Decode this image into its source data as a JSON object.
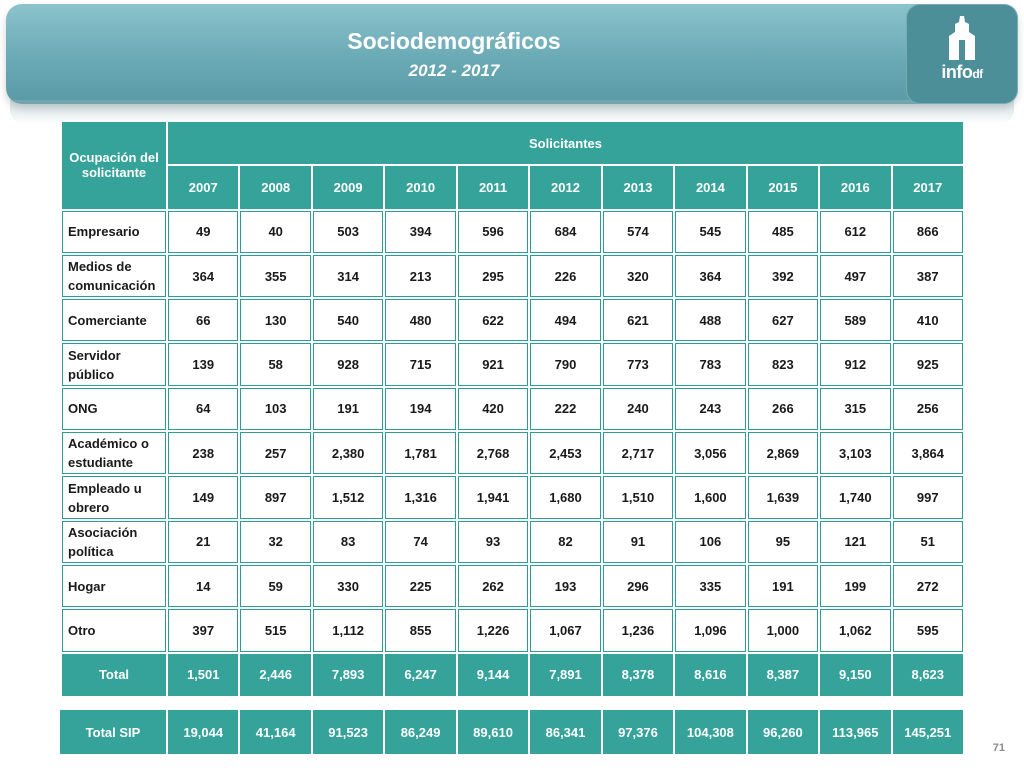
{
  "header": {
    "title": "Sociodemográficos",
    "subtitle": "2012 - 2017",
    "logo_text": "info",
    "logo_suffix": "df"
  },
  "table": {
    "stub_header": "Ocupación del solicitante",
    "group_header": "Solicitantes",
    "years": [
      "2007",
      "2008",
      "2009",
      "2010",
      "2011",
      "2012",
      "2013",
      "2014",
      "2015",
      "2016",
      "2017"
    ],
    "rows": [
      {
        "label": "Empresario",
        "values": [
          "49",
          "40",
          "503",
          "394",
          "596",
          "684",
          "574",
          "545",
          "485",
          "612",
          "866"
        ]
      },
      {
        "label": "Medios de comunicación",
        "values": [
          "364",
          "355",
          "314",
          "213",
          "295",
          "226",
          "320",
          "364",
          "392",
          "497",
          "387"
        ]
      },
      {
        "label": "Comerciante",
        "values": [
          "66",
          "130",
          "540",
          "480",
          "622",
          "494",
          "621",
          "488",
          "627",
          "589",
          "410"
        ]
      },
      {
        "label": "Servidor público",
        "values": [
          "139",
          "58",
          "928",
          "715",
          "921",
          "790",
          "773",
          "783",
          "823",
          "912",
          "925"
        ]
      },
      {
        "label": "ONG",
        "values": [
          "64",
          "103",
          "191",
          "194",
          "420",
          "222",
          "240",
          "243",
          "266",
          "315",
          "256"
        ]
      },
      {
        "label": "Académico o estudiante",
        "values": [
          "238",
          "257",
          "2,380",
          "1,781",
          "2,768",
          "2,453",
          "2,717",
          "3,056",
          "2,869",
          "3,103",
          "3,864"
        ]
      },
      {
        "label": "Empleado u obrero",
        "values": [
          "149",
          "897",
          "1,512",
          "1,316",
          "1,941",
          "1,680",
          "1,510",
          "1,600",
          "1,639",
          "1,740",
          "997"
        ]
      },
      {
        "label": "Asociación política",
        "values": [
          "21",
          "32",
          "83",
          "74",
          "93",
          "82",
          "91",
          "106",
          "95",
          "121",
          "51"
        ]
      },
      {
        "label": "Hogar",
        "values": [
          "14",
          "59",
          "330",
          "225",
          "262",
          "193",
          "296",
          "335",
          "191",
          "199",
          "272"
        ]
      },
      {
        "label": "Otro",
        "values": [
          "397",
          "515",
          "1,112",
          "855",
          "1,226",
          "1,067",
          "1,236",
          "1,096",
          "1,000",
          "1,062",
          "595"
        ]
      }
    ],
    "total": {
      "label": "Total",
      "values": [
        "1,501",
        "2,446",
        "7,893",
        "6,247",
        "9,144",
        "7,891",
        "8,378",
        "8,616",
        "8,387",
        "9,150",
        "8,623"
      ]
    }
  },
  "sip": {
    "label": "Total SIP",
    "values": [
      "19,044",
      "41,164",
      "91,523",
      "86,249",
      "89,610",
      "86,341",
      "97,376",
      "104,308",
      "96,260",
      "113,965",
      "145,251"
    ]
  },
  "page_number": "71",
  "colors": {
    "banner": "#6aaab5",
    "table_header": "#36a39b",
    "border": "#2d9c94"
  }
}
